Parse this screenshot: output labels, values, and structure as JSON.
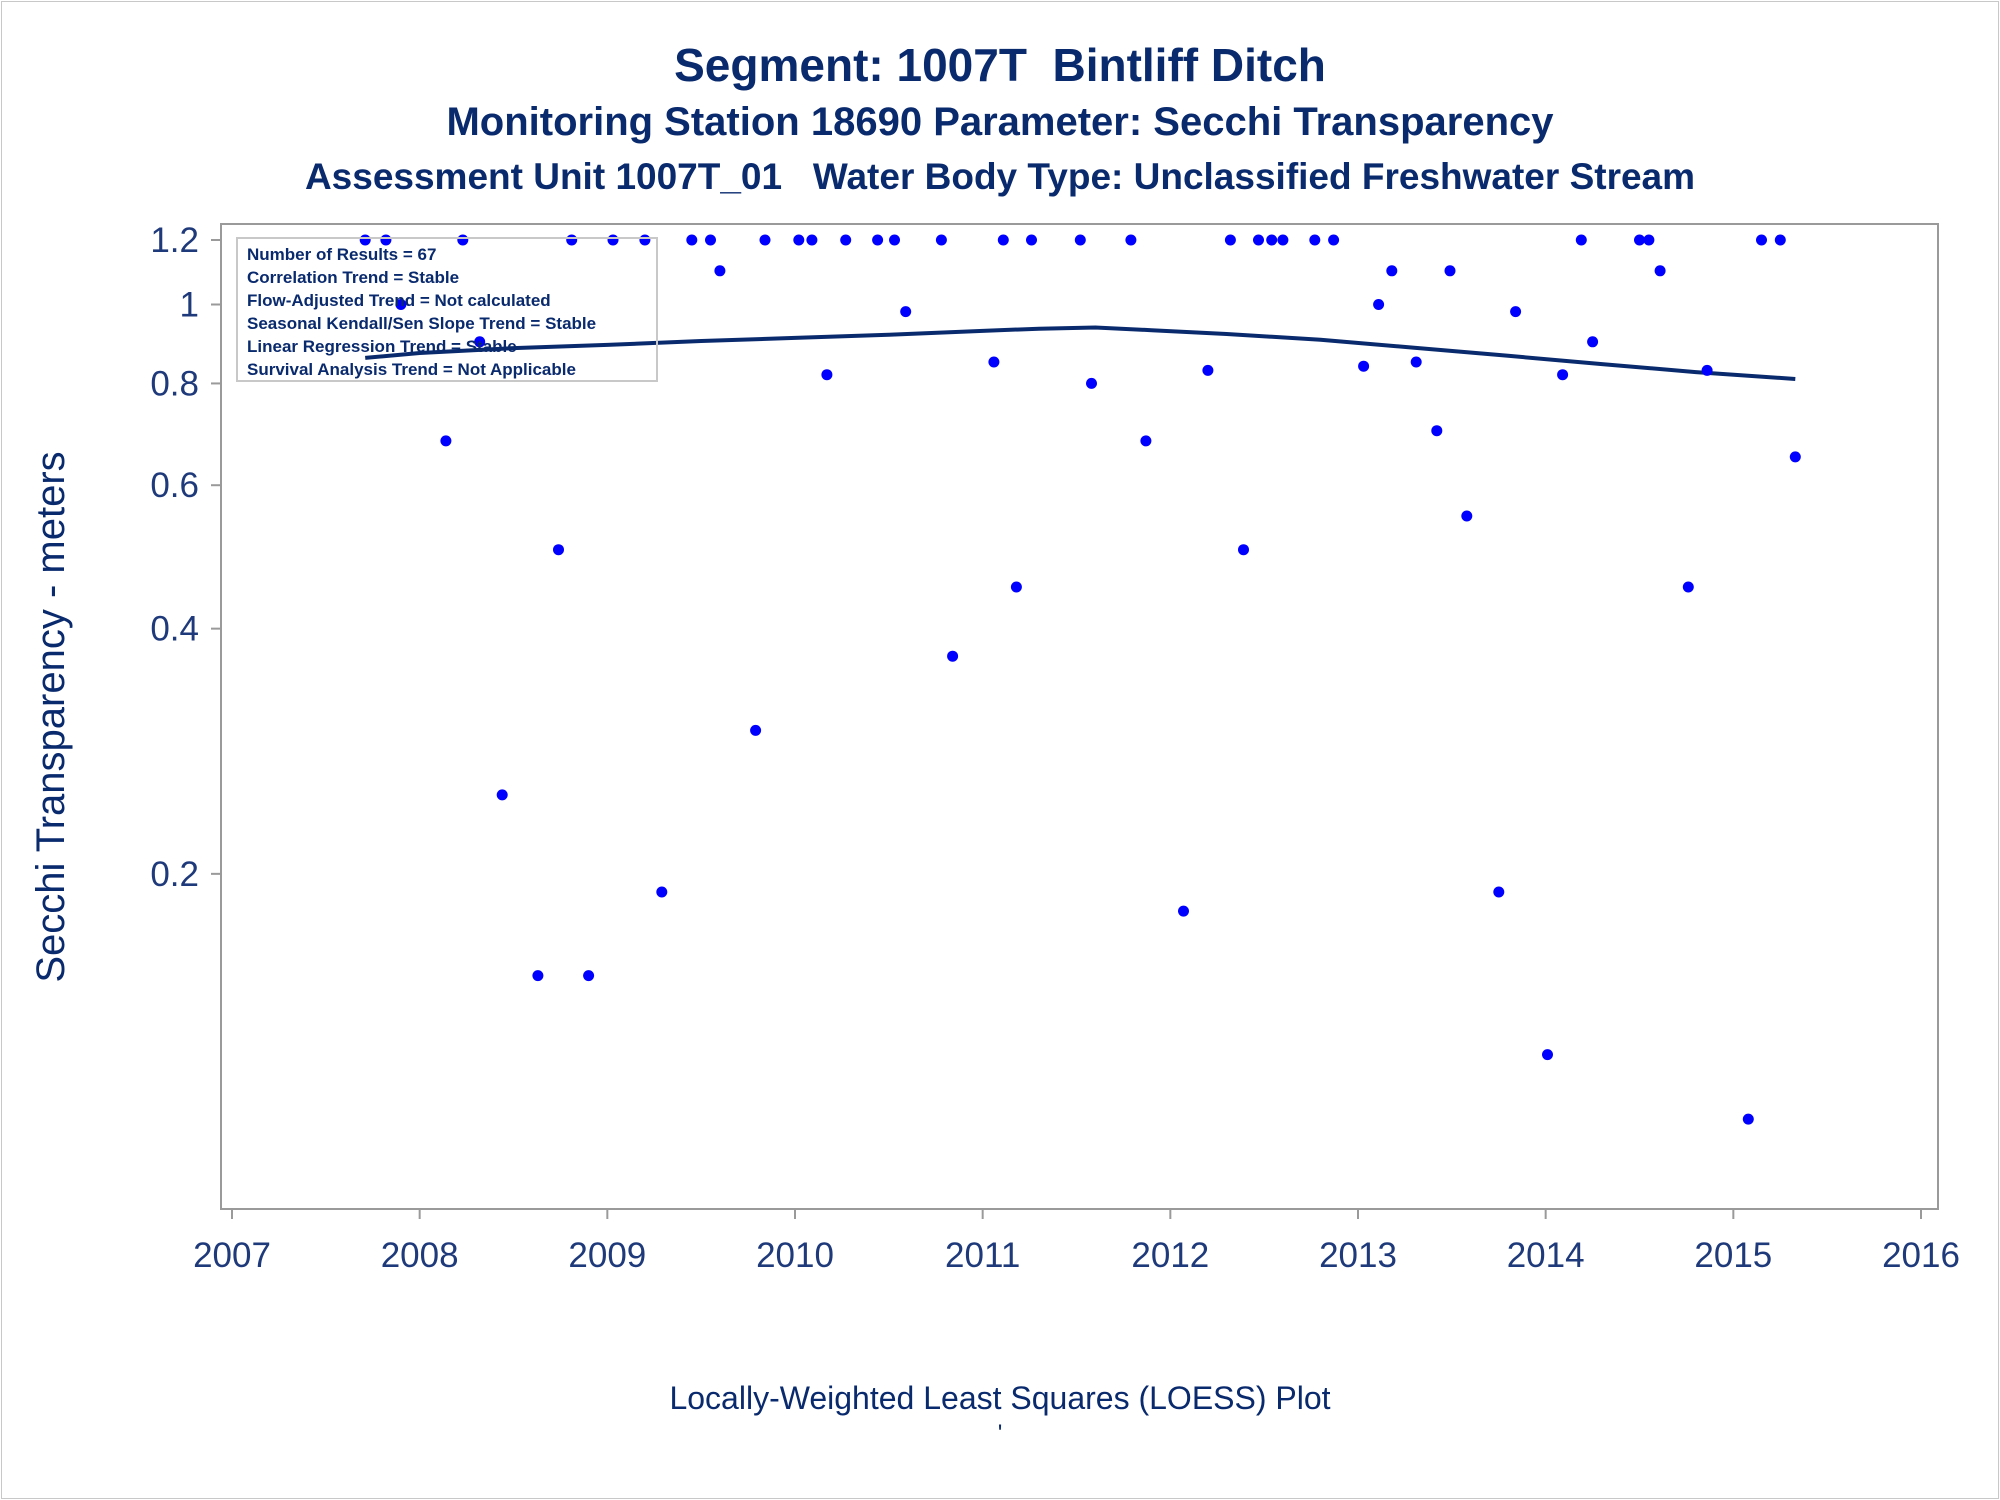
{
  "colors": {
    "title": "#0a2a6e",
    "points": "#0000ff",
    "loess_line": "#0a2a6e",
    "axis": "#9a9a9a"
  },
  "footnote": "Locally-Weighted Least Squares (LOESS) Plot",
  "footmark": "'",
  "chart_data": {
    "type": "scatter",
    "title": "Segment: 1007T  Bintliff Ditch",
    "subtitle": "Monitoring Station 18690 Parameter: Secchi Transparency",
    "subtitle2": "Assessment Unit 1007T_01   Water Body Type: Unclassified Freshwater Stream",
    "xlabel": "",
    "ylabel": "Secchi Transparency - meters",
    "x_ticks": [
      "2007",
      "2008",
      "2009",
      "2010",
      "2011",
      "2012",
      "2013",
      "2014",
      "2015",
      "2016"
    ],
    "y_ticks": [
      "0.2",
      "0.4",
      "0.6",
      "0.8",
      "1",
      "1.2"
    ],
    "xlim": [
      2007,
      2016
    ],
    "ylim": [
      0.08,
      1.2
    ],
    "y_scale": "log",
    "grid": false,
    "info_box": {
      "placement": "top-left",
      "lines": [
        "Number of Results = 67",
        "Correlation Trend = Stable",
        "Flow-Adjusted Trend = Not calculated",
        "Seasonal Kendall/Sen Slope Trend = Stable",
        "Linear Regression Trend = Stable",
        "Survival Analysis Trend = Not Applicable"
      ]
    },
    "series": [
      {
        "type": "scatter",
        "points": [
          [
            2007.71,
            1.2
          ],
          [
            2007.82,
            1.2
          ],
          [
            2007.9,
            1.0
          ],
          [
            2008.14,
            0.68
          ],
          [
            2008.23,
            1.2
          ],
          [
            2008.32,
            0.9
          ],
          [
            2008.44,
            0.25
          ],
          [
            2008.63,
            0.15
          ],
          [
            2008.74,
            0.5
          ],
          [
            2008.81,
            1.2
          ],
          [
            2008.9,
            0.15
          ],
          [
            2009.03,
            1.2
          ],
          [
            2009.2,
            1.2
          ],
          [
            2009.29,
            0.19
          ],
          [
            2009.45,
            1.2
          ],
          [
            2009.55,
            1.2
          ],
          [
            2009.6,
            1.1
          ],
          [
            2009.79,
            0.3
          ],
          [
            2009.84,
            1.2
          ],
          [
            2010.02,
            1.2
          ],
          [
            2010.09,
            1.2
          ],
          [
            2010.17,
            0.82
          ],
          [
            2010.27,
            1.2
          ],
          [
            2010.44,
            1.2
          ],
          [
            2010.53,
            1.2
          ],
          [
            2010.59,
            0.98
          ],
          [
            2010.78,
            1.2
          ],
          [
            2010.84,
            0.37
          ],
          [
            2011.06,
            0.85
          ],
          [
            2011.11,
            1.2
          ],
          [
            2011.18,
            0.45
          ],
          [
            2011.26,
            1.2
          ],
          [
            2011.52,
            1.2
          ],
          [
            2011.58,
            0.8
          ],
          [
            2011.79,
            1.2
          ],
          [
            2011.87,
            0.68
          ],
          [
            2012.07,
            0.18
          ],
          [
            2012.2,
            0.83
          ],
          [
            2012.32,
            1.2
          ],
          [
            2012.39,
            0.5
          ],
          [
            2012.47,
            1.2
          ],
          [
            2012.54,
            1.2
          ],
          [
            2012.6,
            1.2
          ],
          [
            2012.77,
            1.2
          ],
          [
            2012.87,
            1.2
          ],
          [
            2013.03,
            0.84
          ],
          [
            2013.11,
            1.0
          ],
          [
            2013.18,
            1.1
          ],
          [
            2013.31,
            0.85
          ],
          [
            2013.42,
            0.7
          ],
          [
            2013.49,
            1.1
          ],
          [
            2013.58,
            0.55
          ],
          [
            2013.75,
            0.19
          ],
          [
            2013.84,
            0.98
          ],
          [
            2014.01,
            0.12
          ],
          [
            2014.09,
            0.82
          ],
          [
            2014.19,
            1.2
          ],
          [
            2014.25,
            0.9
          ],
          [
            2014.5,
            1.2
          ],
          [
            2014.55,
            1.2
          ],
          [
            2014.61,
            1.1
          ],
          [
            2014.76,
            0.45
          ],
          [
            2014.86,
            0.83
          ],
          [
            2015.08,
            0.1
          ],
          [
            2015.15,
            1.2
          ],
          [
            2015.25,
            1.2
          ],
          [
            2015.33,
            0.65
          ]
        ]
      },
      {
        "type": "line",
        "points": [
          [
            2007.71,
            0.86
          ],
          [
            2008.0,
            0.872
          ],
          [
            2008.5,
            0.884
          ],
          [
            2009.0,
            0.892
          ],
          [
            2009.5,
            0.902
          ],
          [
            2010.0,
            0.91
          ],
          [
            2010.5,
            0.918
          ],
          [
            2011.0,
            0.928
          ],
          [
            2011.3,
            0.934
          ],
          [
            2011.6,
            0.937
          ],
          [
            2011.9,
            0.93
          ],
          [
            2012.3,
            0.92
          ],
          [
            2012.8,
            0.905
          ],
          [
            2013.3,
            0.885
          ],
          [
            2013.8,
            0.865
          ],
          [
            2014.3,
            0.845
          ],
          [
            2014.8,
            0.826
          ],
          [
            2015.33,
            0.81
          ]
        ]
      }
    ]
  }
}
